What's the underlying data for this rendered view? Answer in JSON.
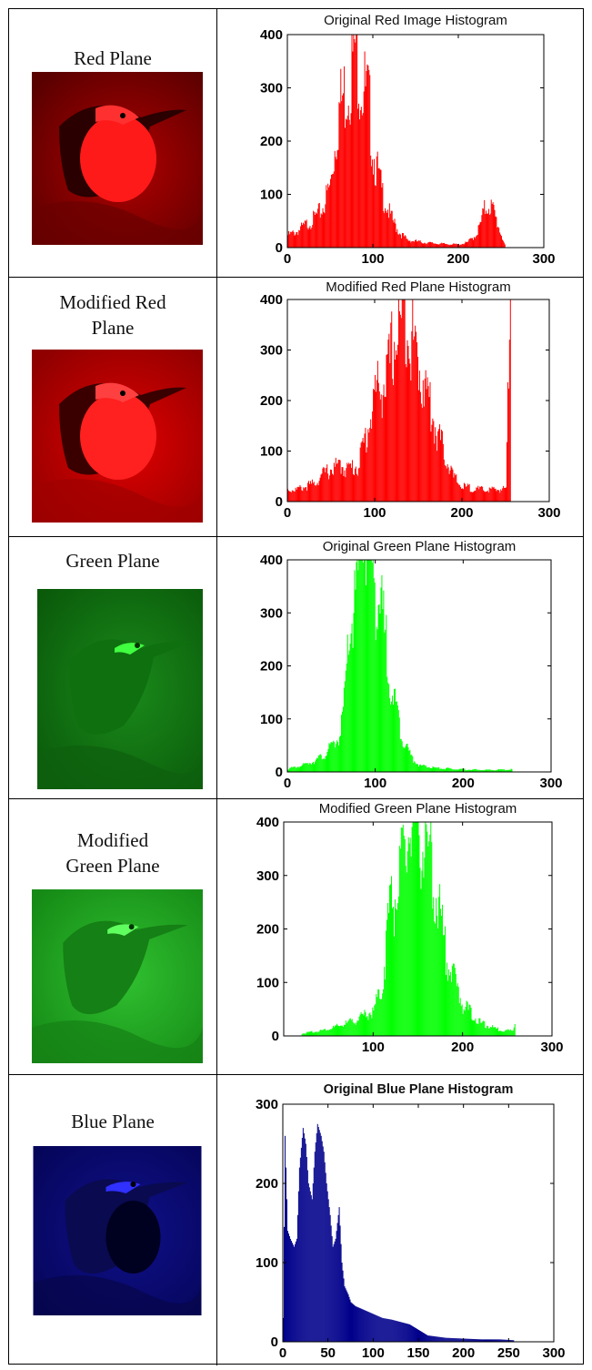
{
  "panels": [
    {
      "label": "Red Plane",
      "title": "Original Red Image Histogram",
      "color": "#ff0000"
    },
    {
      "label": "Modified Red Plane",
      "title": "Modified Red Plane Histogram",
      "color": "#ff0000"
    },
    {
      "label": "Green Plane",
      "title": "Original Green Plane Histogram",
      "color": "#00ff00"
    },
    {
      "label": "Modified Green Plane",
      "title": "Modified Green Plane Histogram",
      "color": "#00ff00"
    },
    {
      "label": "Blue Plane",
      "title": "Original Blue Plane Histogram",
      "color": "#00008b"
    }
  ],
  "chart_data": [
    {
      "type": "bar",
      "title": "Original Red Image Histogram",
      "xlim": [
        0,
        300
      ],
      "ylim": [
        0,
        400
      ],
      "xticks": [
        0,
        100,
        200,
        300
      ],
      "yticks": [
        0,
        100,
        200,
        300,
        400
      ],
      "color": "#ff0000",
      "x": [
        0,
        10,
        20,
        30,
        40,
        50,
        55,
        60,
        65,
        70,
        75,
        80,
        85,
        90,
        95,
        100,
        110,
        120,
        130,
        140,
        160,
        180,
        200,
        210,
        220,
        225,
        230,
        235,
        240,
        245,
        250,
        255
      ],
      "values": [
        20,
        25,
        35,
        45,
        60,
        100,
        160,
        220,
        240,
        260,
        290,
        330,
        270,
        250,
        230,
        150,
        90,
        50,
        25,
        12,
        8,
        6,
        5,
        8,
        20,
        35,
        60,
        70,
        60,
        40,
        20,
        0
      ]
    },
    {
      "type": "bar",
      "title": "Modified Red Plane Histogram",
      "xlim": [
        0,
        300
      ],
      "ylim": [
        0,
        400
      ],
      "xticks": [
        0,
        100,
        200,
        300
      ],
      "yticks": [
        0,
        100,
        200,
        300,
        400
      ],
      "color": "#ff0000",
      "x": [
        0,
        10,
        20,
        30,
        40,
        50,
        60,
        70,
        80,
        90,
        100,
        110,
        115,
        120,
        125,
        130,
        135,
        140,
        145,
        150,
        160,
        170,
        180,
        190,
        200,
        220,
        240,
        250,
        255
      ],
      "values": [
        20,
        20,
        25,
        30,
        45,
        55,
        60,
        55,
        60,
        110,
        180,
        200,
        210,
        260,
        280,
        300,
        330,
        290,
        260,
        230,
        180,
        120,
        80,
        40,
        25,
        20,
        20,
        22,
        400
      ]
    },
    {
      "type": "bar",
      "title": "Original Green Plane Histogram",
      "xlim": [
        0,
        300
      ],
      "ylim": [
        0,
        400
      ],
      "xticks": [
        0,
        100,
        200,
        300
      ],
      "yticks": [
        0,
        100,
        200,
        300,
        400
      ],
      "color": "#00ff00",
      "x": [
        0,
        10,
        20,
        30,
        40,
        50,
        60,
        65,
        70,
        75,
        80,
        85,
        90,
        95,
        100,
        105,
        110,
        115,
        120,
        130,
        140,
        150,
        170,
        200,
        230,
        255
      ],
      "values": [
        5,
        8,
        12,
        18,
        25,
        40,
        60,
        120,
        220,
        260,
        300,
        400,
        370,
        340,
        300,
        260,
        220,
        170,
        120,
        60,
        25,
        10,
        6,
        4,
        3,
        4
      ]
    },
    {
      "type": "bar",
      "title": "Modified Green Plane Histogram",
      "xlim": [
        0,
        300
      ],
      "ylim": [
        0,
        400
      ],
      "xticks": [
        100,
        200,
        300
      ],
      "yticks": [
        0,
        100,
        200,
        300,
        400
      ],
      "color": "#00ff00",
      "x": [
        20,
        40,
        60,
        80,
        100,
        110,
        115,
        120,
        125,
        130,
        135,
        140,
        145,
        150,
        155,
        160,
        165,
        170,
        175,
        180,
        190,
        200,
        220,
        240,
        255,
        258
      ],
      "values": [
        4,
        8,
        15,
        25,
        40,
        80,
        160,
        230,
        220,
        250,
        280,
        330,
        400,
        350,
        320,
        290,
        260,
        230,
        180,
        140,
        90,
        50,
        20,
        10,
        8,
        20
      ]
    },
    {
      "type": "bar",
      "title": "Original Blue Plane Histogram",
      "xlim": [
        0,
        300
      ],
      "ylim": [
        0,
        300
      ],
      "xticks": [
        0,
        50,
        100,
        150,
        200,
        250,
        300
      ],
      "yticks": [
        0,
        100,
        200,
        300
      ],
      "color": "#00008b",
      "x": [
        0,
        2,
        5,
        8,
        12,
        15,
        18,
        22,
        25,
        28,
        32,
        35,
        38,
        42,
        45,
        48,
        52,
        55,
        58,
        62,
        65,
        68,
        72,
        75,
        80,
        90,
        100,
        110,
        120,
        130,
        140,
        150,
        160,
        180,
        200,
        220,
        240,
        255
      ],
      "values": [
        30,
        260,
        140,
        130,
        120,
        130,
        220,
        270,
        250,
        200,
        180,
        240,
        275,
        260,
        240,
        200,
        160,
        120,
        130,
        170,
        100,
        70,
        60,
        50,
        45,
        40,
        35,
        30,
        28,
        25,
        22,
        15,
        8,
        5,
        4,
        3,
        3,
        2
      ]
    }
  ]
}
